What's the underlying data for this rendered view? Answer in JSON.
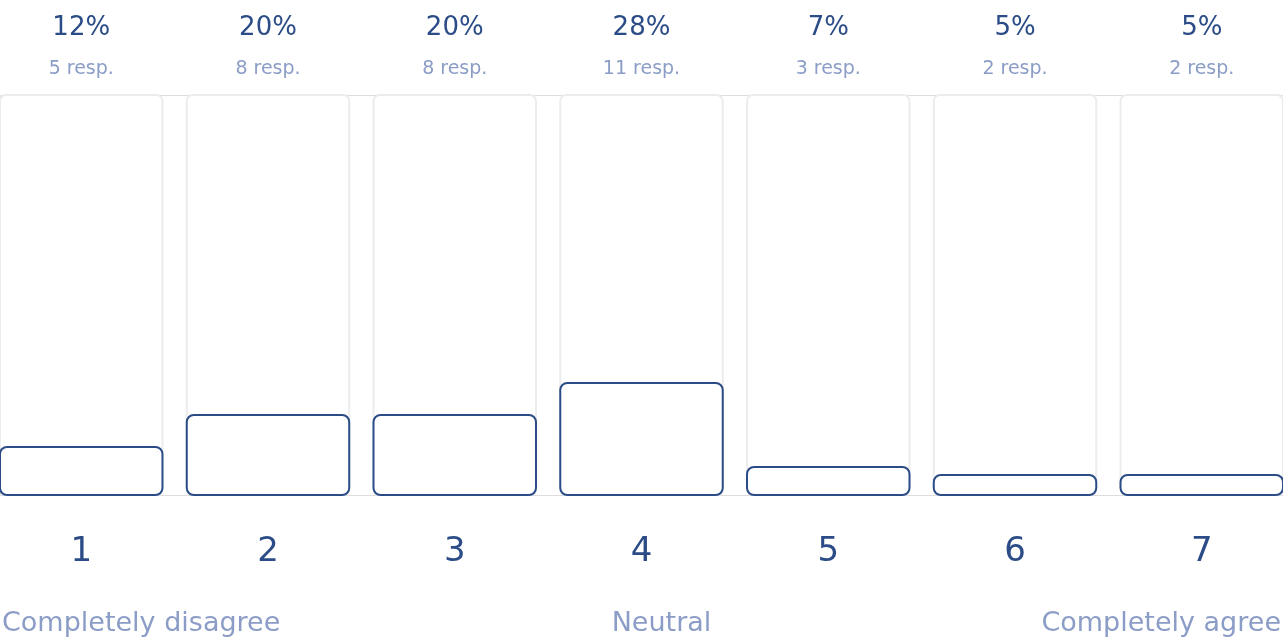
{
  "chart_data": {
    "type": "bar",
    "categories": [
      "1",
      "2",
      "3",
      "4",
      "5",
      "6",
      "7"
    ],
    "values": [
      12,
      20,
      20,
      28,
      7,
      5,
      5
    ],
    "value_labels": [
      "12%",
      "20%",
      "20%",
      "28%",
      "7%",
      "5%",
      "5%"
    ],
    "color": "#2b4c86",
    "ylim": [
      0,
      100
    ],
    "tick_labels": "x",
    "annotations": [
      "5 resp.",
      "8 resp.",
      "8 resp.",
      "11 resp.",
      "3 resp.",
      "2 resp.",
      "2 resp.",
      "Completely disagree",
      "Neutral",
      "Completely agree"
    ]
  }
}
